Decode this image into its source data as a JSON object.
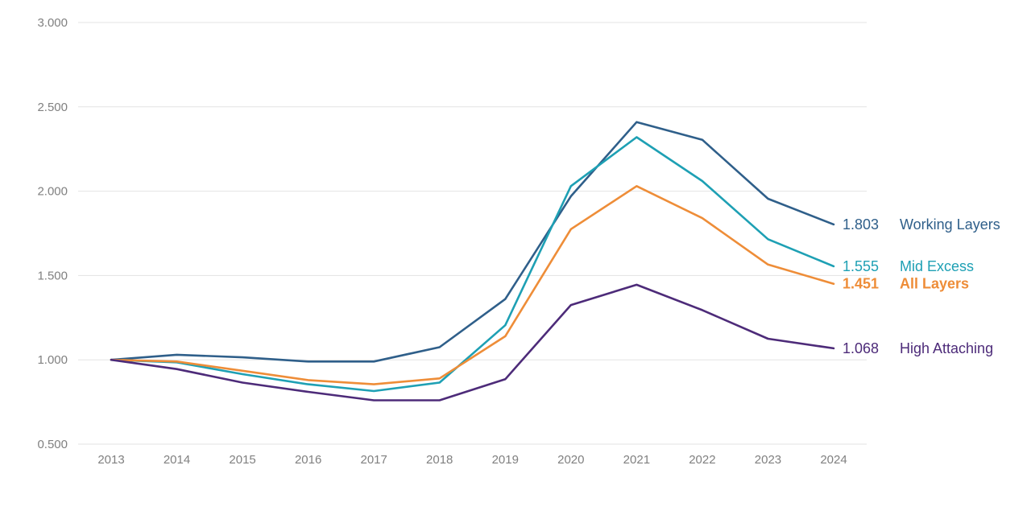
{
  "chart_data": {
    "type": "line",
    "x": [
      "2013",
      "2014",
      "2015",
      "2016",
      "2017",
      "2018",
      "2019",
      "2020",
      "2021",
      "2022",
      "2023",
      "2024"
    ],
    "ylim": [
      0.5,
      3.0
    ],
    "yticks": [
      0.5,
      1.0,
      1.5,
      2.0,
      2.5,
      3.0
    ],
    "ytick_labels": [
      "0.500",
      "1.000",
      "1.500",
      "2.000",
      "2.500",
      "3.000"
    ],
    "grid": true,
    "legend": "end-of-line labels (right)",
    "series": [
      {
        "name": "Working Layers",
        "end_value_label": "1.803",
        "color": "#2f5f8a",
        "bold": false,
        "values": [
          1.0,
          1.03,
          1.015,
          0.99,
          0.99,
          1.075,
          1.36,
          1.97,
          2.41,
          2.305,
          1.955,
          1.803
        ]
      },
      {
        "name": "Mid Excess",
        "end_value_label": "1.555",
        "color": "#1ea0b4",
        "bold": false,
        "values": [
          1.0,
          0.985,
          0.915,
          0.855,
          0.815,
          0.865,
          1.205,
          2.03,
          2.32,
          2.06,
          1.715,
          1.555
        ]
      },
      {
        "name": "All Layers",
        "end_value_label": "1.451",
        "color": "#ee8d38",
        "bold": true,
        "values": [
          1.0,
          0.99,
          0.935,
          0.88,
          0.855,
          0.89,
          1.14,
          1.775,
          2.03,
          1.84,
          1.565,
          1.451
        ]
      },
      {
        "name": "High Attaching",
        "end_value_label": "1.068",
        "color": "#4d2b79",
        "bold": false,
        "values": [
          1.0,
          0.945,
          0.865,
          0.81,
          0.76,
          0.76,
          0.885,
          1.325,
          1.445,
          1.295,
          1.125,
          1.068
        ]
      }
    ]
  }
}
